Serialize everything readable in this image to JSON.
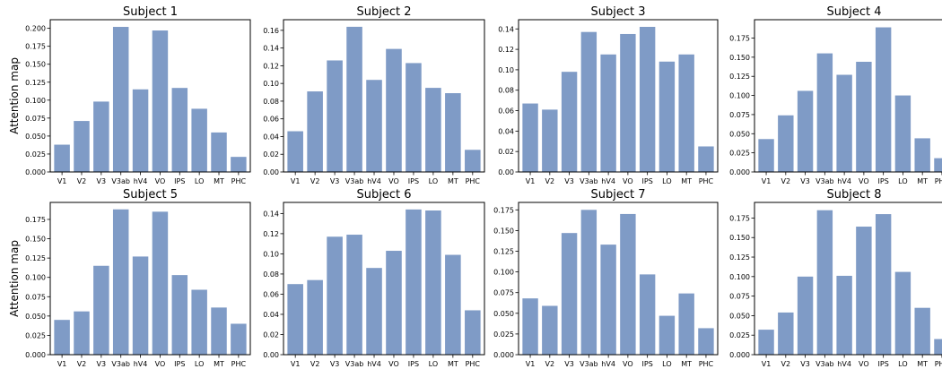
{
  "figure": {
    "ylabel": "Attention map",
    "bar_color": "#7f9bc6",
    "frame_color": "#000000"
  },
  "chart_data": [
    {
      "type": "bar",
      "title": "Subject 1",
      "ylabel": "Attention map",
      "categories": [
        "V1",
        "V2",
        "V3",
        "V3ab",
        "hV4",
        "VO",
        "IPS",
        "LO",
        "MT",
        "PHC"
      ],
      "values": [
        0.038,
        0.071,
        0.098,
        0.202,
        0.115,
        0.197,
        0.117,
        0.088,
        0.055,
        0.021
      ],
      "ylim": [
        0,
        0.212
      ],
      "yticks": [
        0.0,
        0.025,
        0.05,
        0.075,
        0.1,
        0.125,
        0.15,
        0.175,
        0.2
      ],
      "decimals": 3
    },
    {
      "type": "bar",
      "title": "Subject 2",
      "ylabel": "",
      "categories": [
        "V1",
        "V2",
        "V3",
        "V3ab",
        "hV4",
        "VO",
        "IPS",
        "LO",
        "MT",
        "PHC"
      ],
      "values": [
        0.046,
        0.091,
        0.126,
        0.164,
        0.104,
        0.139,
        0.123,
        0.095,
        0.089,
        0.025
      ],
      "ylim": [
        0,
        0.172
      ],
      "yticks": [
        0.0,
        0.02,
        0.04,
        0.06,
        0.08,
        0.1,
        0.12,
        0.14,
        0.16
      ],
      "decimals": 2
    },
    {
      "type": "bar",
      "title": "Subject 3",
      "ylabel": "",
      "categories": [
        "V1",
        "V2",
        "V3",
        "V3ab",
        "hV4",
        "VO",
        "IPS",
        "LO",
        "MT",
        "PHC"
      ],
      "values": [
        0.067,
        0.061,
        0.098,
        0.137,
        0.115,
        0.135,
        0.142,
        0.108,
        0.115,
        0.025
      ],
      "ylim": [
        0,
        0.149
      ],
      "yticks": [
        0.0,
        0.02,
        0.04,
        0.06,
        0.08,
        0.1,
        0.12,
        0.14
      ],
      "decimals": 2
    },
    {
      "type": "bar",
      "title": "Subject 4",
      "ylabel": "",
      "categories": [
        "V1",
        "V2",
        "V3",
        "V3ab",
        "hV4",
        "VO",
        "IPS",
        "LO",
        "MT",
        "PHC"
      ],
      "values": [
        0.043,
        0.074,
        0.106,
        0.155,
        0.127,
        0.144,
        0.189,
        0.1,
        0.044,
        0.018
      ],
      "ylim": [
        0,
        0.199
      ],
      "yticks": [
        0.0,
        0.025,
        0.05,
        0.075,
        0.1,
        0.125,
        0.15,
        0.175
      ],
      "decimals": 3
    },
    {
      "type": "bar",
      "title": "Subject 5",
      "ylabel": "Attention map",
      "categories": [
        "V1",
        "V2",
        "V3",
        "V3ab",
        "hV4",
        "VO",
        "IPS",
        "LO",
        "MT",
        "PHC"
      ],
      "values": [
        0.045,
        0.056,
        0.115,
        0.188,
        0.127,
        0.185,
        0.103,
        0.084,
        0.061,
        0.04
      ],
      "ylim": [
        0,
        0.197
      ],
      "yticks": [
        0.0,
        0.025,
        0.05,
        0.075,
        0.1,
        0.125,
        0.15,
        0.175
      ],
      "decimals": 3
    },
    {
      "type": "bar",
      "title": "Subject 6",
      "ylabel": "",
      "categories": [
        "V1",
        "V2",
        "V3",
        "V3ab",
        "hV4",
        "VO",
        "IPS",
        "LO",
        "MT",
        "PHC"
      ],
      "values": [
        0.07,
        0.074,
        0.117,
        0.119,
        0.086,
        0.103,
        0.144,
        0.143,
        0.099,
        0.044
      ],
      "ylim": [
        0,
        0.151
      ],
      "yticks": [
        0.0,
        0.02,
        0.04,
        0.06,
        0.08,
        0.1,
        0.12,
        0.14
      ],
      "decimals": 2
    },
    {
      "type": "bar",
      "title": "Subject 7",
      "ylabel": "",
      "categories": [
        "V1",
        "V2",
        "V3",
        "V3ab",
        "hV4",
        "VO",
        "IPS",
        "LO",
        "MT",
        "PHC"
      ],
      "values": [
        0.068,
        0.059,
        0.147,
        0.175,
        0.133,
        0.17,
        0.097,
        0.047,
        0.074,
        0.032
      ],
      "ylim": [
        0,
        0.184
      ],
      "yticks": [
        0.0,
        0.025,
        0.05,
        0.075,
        0.1,
        0.125,
        0.15,
        0.175
      ],
      "decimals": 3
    },
    {
      "type": "bar",
      "title": "Subject 8",
      "ylabel": "",
      "categories": [
        "V1",
        "V2",
        "V3",
        "V3ab",
        "hV4",
        "VO",
        "IPS",
        "LO",
        "MT",
        "PHC"
      ],
      "values": [
        0.032,
        0.054,
        0.1,
        0.185,
        0.101,
        0.164,
        0.18,
        0.106,
        0.06,
        0.02
      ],
      "ylim": [
        0,
        0.195
      ],
      "yticks": [
        0.0,
        0.025,
        0.05,
        0.075,
        0.1,
        0.125,
        0.15,
        0.175
      ],
      "decimals": 3
    }
  ]
}
